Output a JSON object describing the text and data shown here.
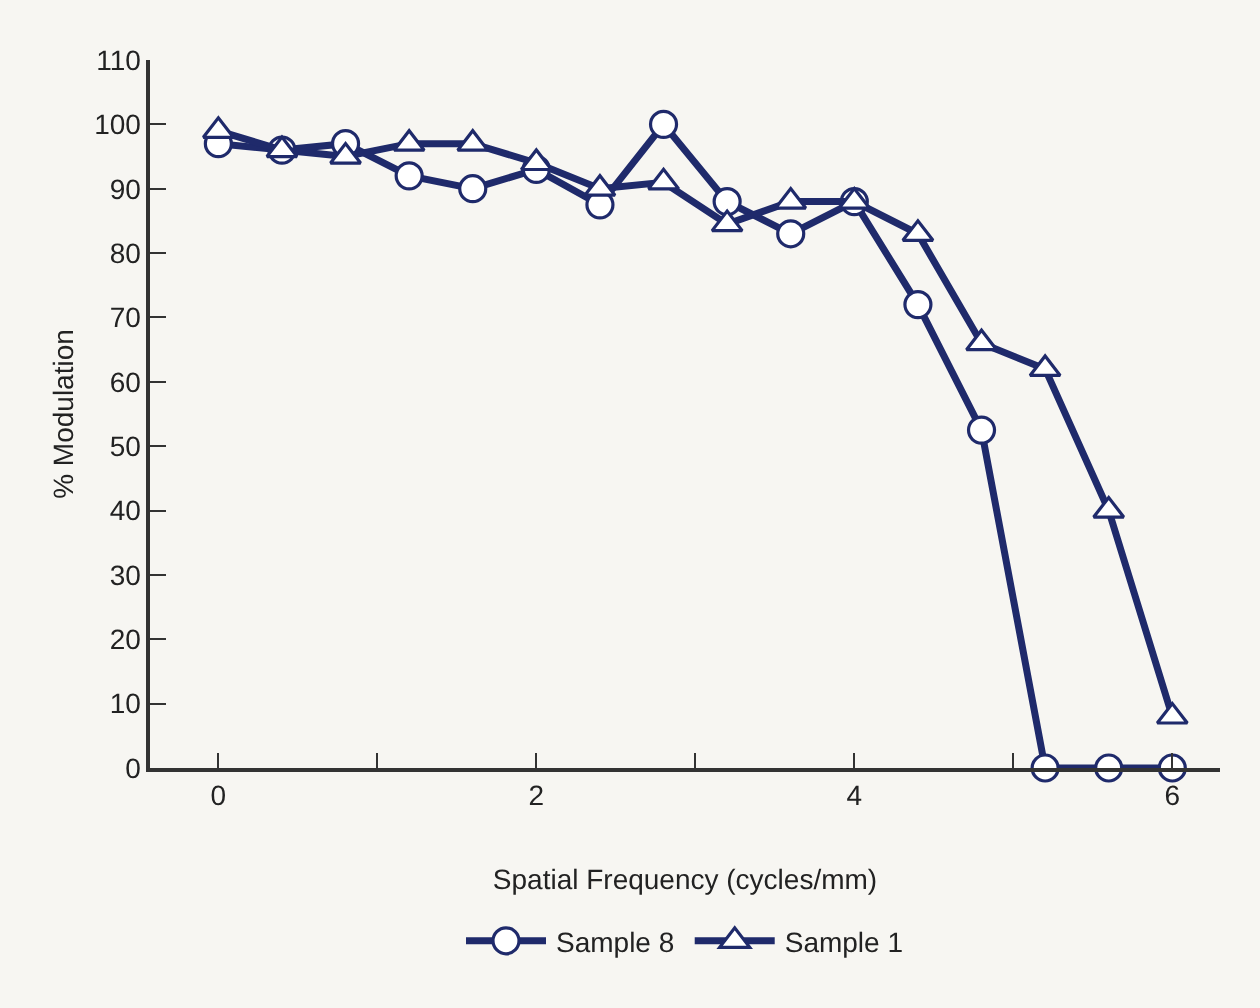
{
  "chart_data": {
    "type": "line",
    "xlabel": "Spatial Frequency (cycles/mm)",
    "ylabel": "% Modulation",
    "x": [
      0,
      0.4,
      0.8,
      1.2,
      1.6,
      2.0,
      2.4,
      2.8,
      3.2,
      3.6,
      4.0,
      4.4,
      4.8,
      5.2,
      5.6,
      6.0
    ],
    "series": [
      {
        "name": "Sample 8",
        "color": "#1f2a6b",
        "marker": "circle",
        "values": [
          97,
          96,
          97,
          92,
          90,
          93,
          87.5,
          100,
          88,
          83,
          88,
          72,
          52.5,
          0,
          0,
          0
        ]
      },
      {
        "name": "Sample 1",
        "color": "#1f2a6b",
        "marker": "triangle",
        "values": [
          99,
          96,
          95,
          97,
          97,
          94,
          90,
          91,
          84.5,
          88,
          88,
          83,
          66,
          62,
          40,
          8
        ]
      }
    ],
    "xlim": [
      -0.43,
      6.3
    ],
    "xticks": [
      0,
      {
        "value": 1,
        "label": null
      },
      2,
      {
        "value": 3,
        "label": null
      },
      4,
      {
        "value": 5,
        "label": null
      },
      6
    ],
    "ylim": [
      0,
      110
    ],
    "yticks": [
      0,
      10,
      20,
      30,
      40,
      50,
      60,
      70,
      80,
      90,
      100,
      110
    ],
    "grid": false,
    "legend": "bottom",
    "line_style": "solid"
  }
}
